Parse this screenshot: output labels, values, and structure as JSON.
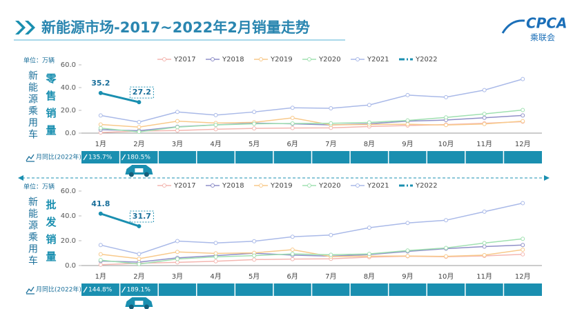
{
  "title": "新能源市场-2017~2022年2月销量走势",
  "logo": {
    "en": "CPCA",
    "zh": "乘联会"
  },
  "chart_data": [
    {
      "type": "line",
      "title": "零售销量",
      "side_label": "新能源乘用车",
      "unit": "单位：万辆",
      "categories": [
        "1月",
        "2月",
        "3月",
        "4月",
        "5月",
        "6月",
        "7月",
        "8月",
        "9月",
        "10月",
        "11月",
        "12月"
      ],
      "ylim": [
        0,
        60
      ],
      "yticks": [
        {
          "value": 0,
          "label": "0.0"
        },
        {
          "value": 20,
          "label": "20.0"
        },
        {
          "value": 40,
          "label": "40.0"
        },
        {
          "value": 60,
          "label": "60.0"
        }
      ],
      "series": [
        {
          "name": "Y2017",
          "color": "#f4b6b0",
          "values": [
            0.5,
            1.8,
            2.3,
            3.4,
            4.2,
            4.5,
            4.6,
            5.8,
            6.7,
            7.5,
            8.6,
            10.1
          ]
        },
        {
          "name": "Y2018",
          "color": "#8f8fc8",
          "values": [
            3.0,
            2.1,
            5.6,
            7.3,
            8.8,
            8.2,
            7.2,
            8.2,
            10.5,
            11.5,
            13.5,
            15.5
          ]
        },
        {
          "name": "Y2019",
          "color": "#f8c98a",
          "values": [
            7.6,
            5.3,
            10.5,
            8.9,
            9.5,
            13.4,
            7.2,
            7.6,
            7.8,
            7.1,
            8.0,
            10.5
          ]
        },
        {
          "name": "Y2020",
          "color": "#9fe0b0",
          "values": [
            4.4,
            1.1,
            5.3,
            7.2,
            8.2,
            8.5,
            8.6,
            9.4,
            11.1,
            13.8,
            16.9,
            20.3
          ]
        },
        {
          "name": "Y2021",
          "color": "#a9b9e8",
          "values": [
            15.5,
            9.7,
            18.6,
            15.8,
            18.6,
            22.3,
            21.8,
            24.7,
            33.4,
            31.6,
            37.8,
            47.5
          ]
        },
        {
          "name": "Y2022",
          "color": "#1a8fb0",
          "dashed": true,
          "show_values": true,
          "values": [
            35.2,
            27.2,
            null,
            null,
            null,
            null,
            null,
            null,
            null,
            null,
            null,
            null
          ]
        }
      ],
      "yoy_title": "月同比(2022年)",
      "yoy_values": [
        135.7,
        180.5
      ],
      "yoy_labels": [
        "135.7%",
        "180.5%"
      ]
    },
    {
      "type": "line",
      "title": "批发销量",
      "side_label": "新能源乘用车",
      "unit": "单位：万辆",
      "categories": [
        "1月",
        "2月",
        "3月",
        "4月",
        "5月",
        "6月",
        "7月",
        "8月",
        "9月",
        "10月",
        "11月",
        "12月"
      ],
      "ylim": [
        0,
        60
      ],
      "yticks": [
        {
          "value": 0,
          "label": "0.0"
        },
        {
          "value": 20,
          "label": "20.0"
        },
        {
          "value": 40,
          "label": "40.0"
        },
        {
          "value": 60,
          "label": "60.0"
        }
      ],
      "series": [
        {
          "name": "Y2017",
          "color": "#f4b6b0",
          "values": [
            0.7,
            1.8,
            2.6,
            3.5,
            4.8,
            5.2,
            5.4,
            6.8,
            7.5,
            7.1,
            7.8,
            9.0
          ]
        },
        {
          "name": "Y2018",
          "color": "#8f8fc8",
          "values": [
            3.6,
            2.8,
            6.2,
            8.0,
            9.9,
            8.4,
            7.6,
            8.8,
            11.4,
            13.6,
            15.3,
            16.5
          ]
        },
        {
          "name": "Y2019",
          "color": "#f8c98a",
          "values": [
            9.1,
            5.5,
            11.0,
            9.8,
            10.2,
            12.8,
            7.2,
            7.6,
            7.7,
            7.4,
            8.4,
            12.8
          ]
        },
        {
          "name": "Y2020",
          "color": "#9fe0b0",
          "values": [
            4.4,
            1.2,
            5.3,
            7.0,
            8.0,
            9.4,
            8.7,
            9.4,
            12.1,
            14.2,
            18.1,
            21.5
          ]
        },
        {
          "name": "Y2021",
          "color": "#a9b9e8",
          "values": [
            16.5,
            9.3,
            19.7,
            18.2,
            19.6,
            23.2,
            24.6,
            30.5,
            34.3,
            36.5,
            43.4,
            50.3
          ]
        },
        {
          "name": "Y2022",
          "color": "#1a8fb0",
          "dashed": true,
          "show_values": true,
          "values": [
            41.8,
            31.7,
            null,
            null,
            null,
            null,
            null,
            null,
            null,
            null,
            null,
            null
          ]
        }
      ],
      "yoy_title": "月同比(2022年)",
      "yoy_values": [
        144.8,
        189.1
      ],
      "yoy_labels": [
        "144.8%",
        "189.1%"
      ]
    }
  ]
}
